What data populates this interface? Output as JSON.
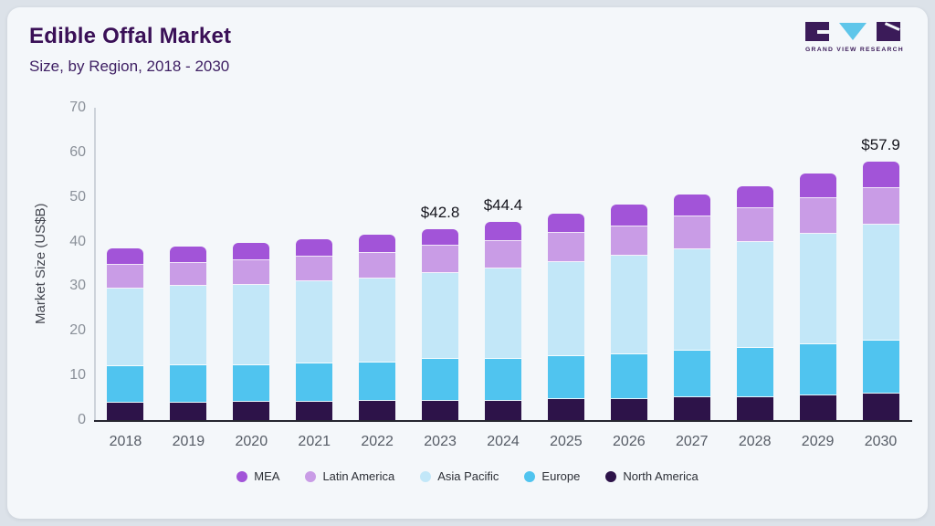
{
  "header": {
    "title": "Edible Offal Market",
    "subtitle": "Size, by Region, 2018 - 2030"
  },
  "logo": {
    "caption": "GRAND VIEW RESEARCH"
  },
  "colors": {
    "background_card": "#f4f7fa",
    "background_outer": "#dce2e9",
    "title_text": "#3a1057",
    "logo_purple": "#3b1b59",
    "logo_triangle_blue": "#5fc6ea"
  },
  "chart_data": {
    "type": "bar",
    "stacked": true,
    "title": "Edible Offal Market Size, by Region, 2018 - 2030",
    "xlabel": "",
    "ylabel": "Market Size (US$B)",
    "ylim": [
      0,
      70
    ],
    "yticks": [
      0,
      10,
      20,
      30,
      40,
      50,
      60,
      70
    ],
    "grid": false,
    "legend_position": "bottom",
    "categories": [
      "2018",
      "2019",
      "2020",
      "2021",
      "2022",
      "2023",
      "2024",
      "2025",
      "2026",
      "2027",
      "2028",
      "2029",
      "2030"
    ],
    "series": [
      {
        "name": "North America",
        "color": "#2d1349",
        "values": [
          3.8,
          3.9,
          4.0,
          4.1,
          4.2,
          4.3,
          4.4,
          4.7,
          4.8,
          5.1,
          5.2,
          5.5,
          5.9
        ]
      },
      {
        "name": "Europe",
        "color": "#50c4ef",
        "values": [
          8.2,
          8.3,
          8.3,
          8.5,
          8.7,
          9.4,
          9.4,
          9.7,
          10.0,
          10.4,
          11.0,
          11.4,
          11.9
        ]
      },
      {
        "name": "Asia Pacific",
        "color": "#c2e7f8",
        "values": [
          17.5,
          17.9,
          18.0,
          18.5,
          18.9,
          19.3,
          20.1,
          21.0,
          22.0,
          22.7,
          23.8,
          24.9,
          26.1
        ]
      },
      {
        "name": "Latin America",
        "color": "#c99ce6",
        "values": [
          5.2,
          5.1,
          5.6,
          5.6,
          5.7,
          6.0,
          6.2,
          6.6,
          6.7,
          7.4,
          7.5,
          7.9,
          8.0
        ]
      },
      {
        "name": "MEA",
        "color": "#a254d8",
        "values": [
          3.7,
          3.7,
          3.9,
          3.9,
          4.0,
          3.8,
          4.3,
          4.3,
          4.8,
          5.0,
          5.0,
          5.6,
          6.0
        ]
      }
    ],
    "totals": [
      38.4,
      38.9,
      39.8,
      40.6,
      41.5,
      42.8,
      44.4,
      46.3,
      48.3,
      50.6,
      52.5,
      55.3,
      57.9
    ],
    "annotations": [
      {
        "category": "2023",
        "label": "$42.8"
      },
      {
        "category": "2024",
        "label": "$44.4"
      },
      {
        "category": "2030",
        "label": "$57.9"
      }
    ],
    "legend": [
      "MEA",
      "Latin America",
      "Asia Pacific",
      "Europe",
      "North America"
    ]
  }
}
